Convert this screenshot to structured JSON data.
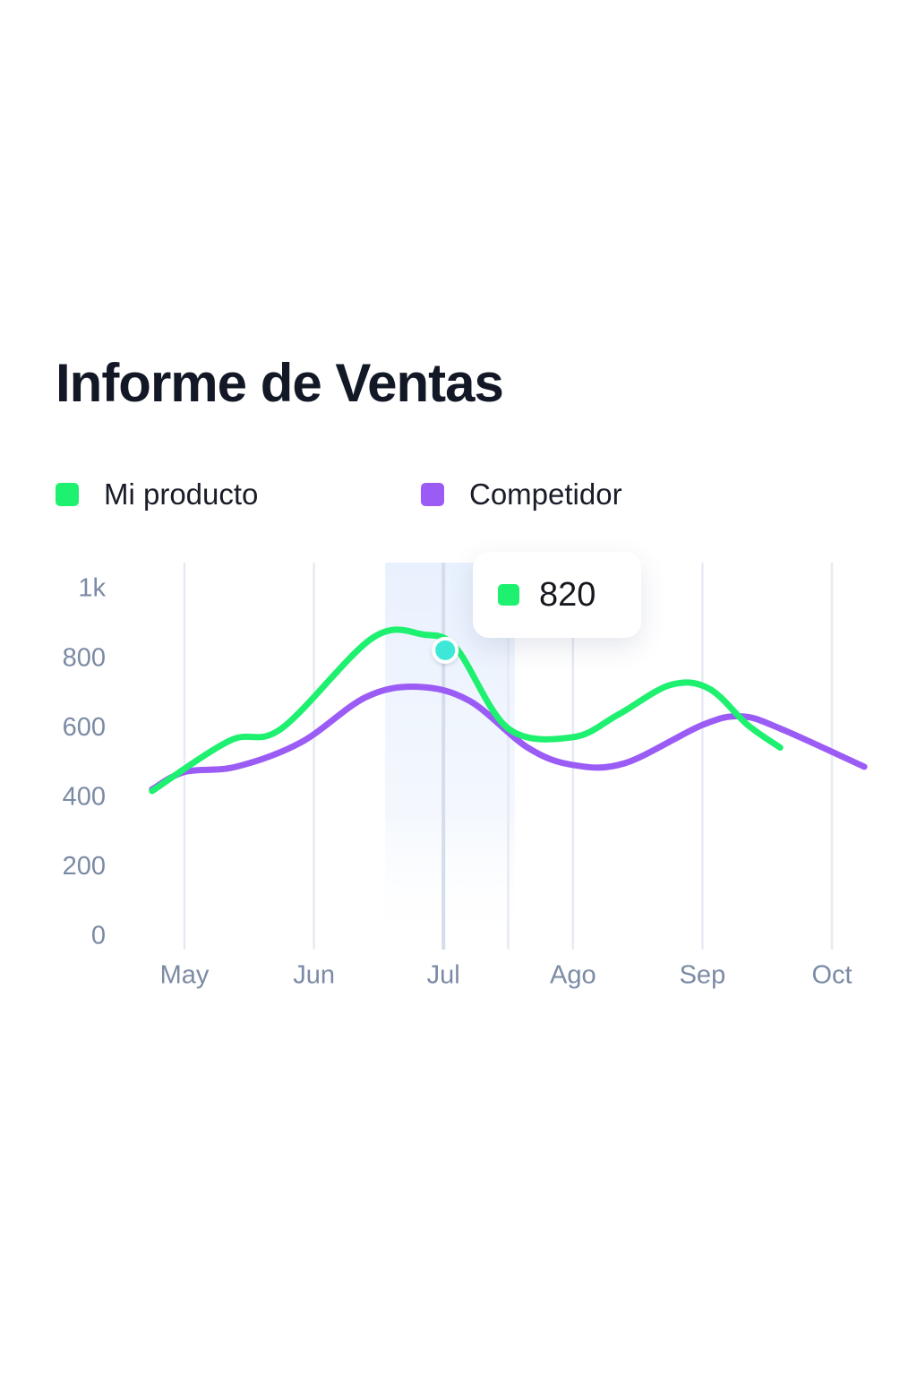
{
  "header": {
    "title": "Informe de Ventas"
  },
  "colors": {
    "mi_producto": "#1ef06f",
    "competidor": "#9b5cf6",
    "highlight_point": "#3ee8d8",
    "grid": "#e6eaf2",
    "axis_text": "#7b8aa5",
    "highlight_band": "#eaf2fe"
  },
  "tooltip": {
    "value": "820",
    "series": "Mi producto",
    "month": "Jul"
  },
  "chart_data": {
    "type": "line",
    "title": "Informe de Ventas",
    "x_range": [
      -0.3,
      5.25
    ],
    "ylim": [
      0,
      1000
    ],
    "y_ticks": [
      0,
      200,
      400,
      600,
      800,
      1000
    ],
    "y_tick_labels": [
      "0",
      "200",
      "400",
      "600",
      "800",
      "1k"
    ],
    "categories": [
      "May",
      "Jun",
      "Jul",
      "Ago",
      "Sep",
      "Oct"
    ],
    "category_x": [
      0,
      1,
      2,
      3,
      4,
      5
    ],
    "gridline_x": [
      0,
      1,
      2,
      2.5,
      3,
      4,
      5
    ],
    "highlight_x": 2,
    "highlight_band": [
      1.55,
      2.55
    ],
    "grid": true,
    "legend_position": "top-left",
    "series": [
      {
        "name": "Mi producto",
        "color": "#1ef06f",
        "points": [
          [
            -0.25,
            420
          ],
          [
            0.35,
            565
          ],
          [
            0.75,
            600
          ],
          [
            1.45,
            860
          ],
          [
            1.85,
            870
          ],
          [
            2.1,
            830
          ],
          [
            2.5,
            600
          ],
          [
            3.0,
            575
          ],
          [
            3.35,
            640
          ],
          [
            3.75,
            725
          ],
          [
            4.05,
            715
          ],
          [
            4.35,
            610
          ],
          [
            4.6,
            545
          ]
        ]
      },
      {
        "name": "Competidor",
        "color": "#9b5cf6",
        "points": [
          [
            -0.25,
            425
          ],
          [
            0.0,
            475
          ],
          [
            0.4,
            490
          ],
          [
            0.9,
            560
          ],
          [
            1.4,
            690
          ],
          [
            1.8,
            720
          ],
          [
            2.2,
            680
          ],
          [
            2.65,
            545
          ],
          [
            3.0,
            495
          ],
          [
            3.4,
            500
          ],
          [
            4.0,
            610
          ],
          [
            4.3,
            635
          ],
          [
            4.6,
            600
          ],
          [
            5.25,
            490
          ]
        ]
      }
    ]
  },
  "legend": {
    "items": [
      {
        "label": "Mi producto",
        "color": "#1ef06f"
      },
      {
        "label": "Competidor",
        "color": "#9b5cf6"
      }
    ]
  }
}
